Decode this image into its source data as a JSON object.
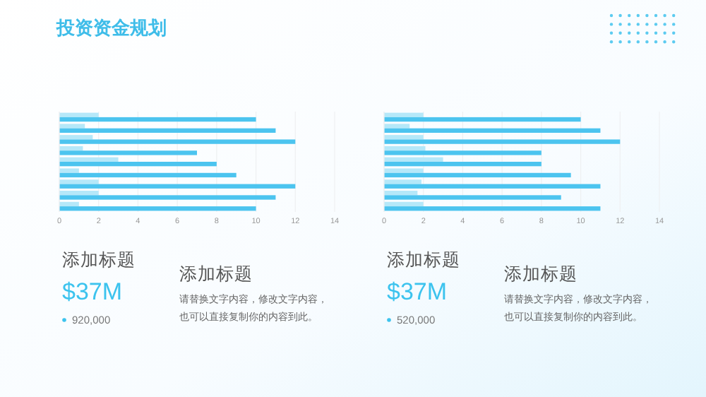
{
  "chart_data": [
    {
      "type": "bar",
      "title": "投资资金规划",
      "orientation": "horizontal",
      "categories": [
        null,
        null,
        null,
        null,
        null,
        null,
        null,
        null,
        null
      ],
      "series": [
        {
          "color": "#b5e8f9",
          "values": [
            2,
            1.3,
            1.7,
            1.2,
            3,
            1,
            2,
            2,
            1
          ]
        },
        {
          "color": "#4cc4ef",
          "values": [
            10,
            11,
            12,
            7,
            8,
            9,
            12,
            11,
            10
          ]
        }
      ],
      "xlim": [
        0,
        14
      ],
      "xticks": [
        0,
        2,
        4,
        6,
        8,
        10,
        12,
        14
      ],
      "grid": "x",
      "tick_labels": "x"
    },
    {
      "type": "bar",
      "orientation": "horizontal",
      "categories": [
        null,
        null,
        null,
        null,
        null,
        null,
        null,
        null,
        null
      ],
      "series": [
        {
          "color": "#b5e8f9",
          "values": [
            2,
            1.3,
            2,
            2.1,
            3,
            2,
            1.9,
            1.7,
            2
          ]
        },
        {
          "color": "#4cc4ef",
          "values": [
            10,
            11,
            12,
            8,
            8,
            9.5,
            11,
            9,
            11
          ]
        }
      ],
      "xlim": [
        0,
        14
      ],
      "xticks": [
        0,
        2,
        4,
        6,
        8,
        10,
        12,
        14
      ],
      "grid": "x",
      "tick_labels": "x"
    },
    {
      "type": "other",
      "title": "添加标题",
      "annotations": [
        "$37M",
        "920,000",
        "添加标题",
        "请替换文字内容，修改文字内容，",
        "也可以直接复制你的内容到此。"
      ]
    },
    {
      "type": "other",
      "title": "添加标题",
      "annotations": [
        "$37M",
        "520,000",
        "添加标题",
        "请替换文字内容，修改文字内容，",
        "也可以直接复制你的内容到此。"
      ]
    }
  ]
}
